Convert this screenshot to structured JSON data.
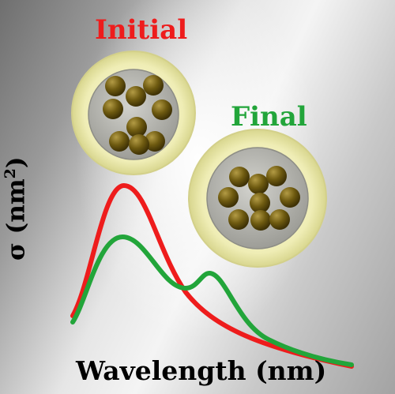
{
  "labels": {
    "initial": "Initial",
    "final": "Final",
    "x_axis": "Wavelength (nm)",
    "y_axis_prefix": "σ (nm",
    "y_axis_sup": "2",
    "y_axis_suffix": ")"
  },
  "colors": {
    "initial": "#ee1c1c",
    "final": "#22a53a",
    "shell": "#f3f1c0",
    "core": "#b3b3ad",
    "particle": "#6e5a10"
  },
  "curves": {
    "initial": "single plasmon peak",
    "final": "split into two peaks"
  }
}
